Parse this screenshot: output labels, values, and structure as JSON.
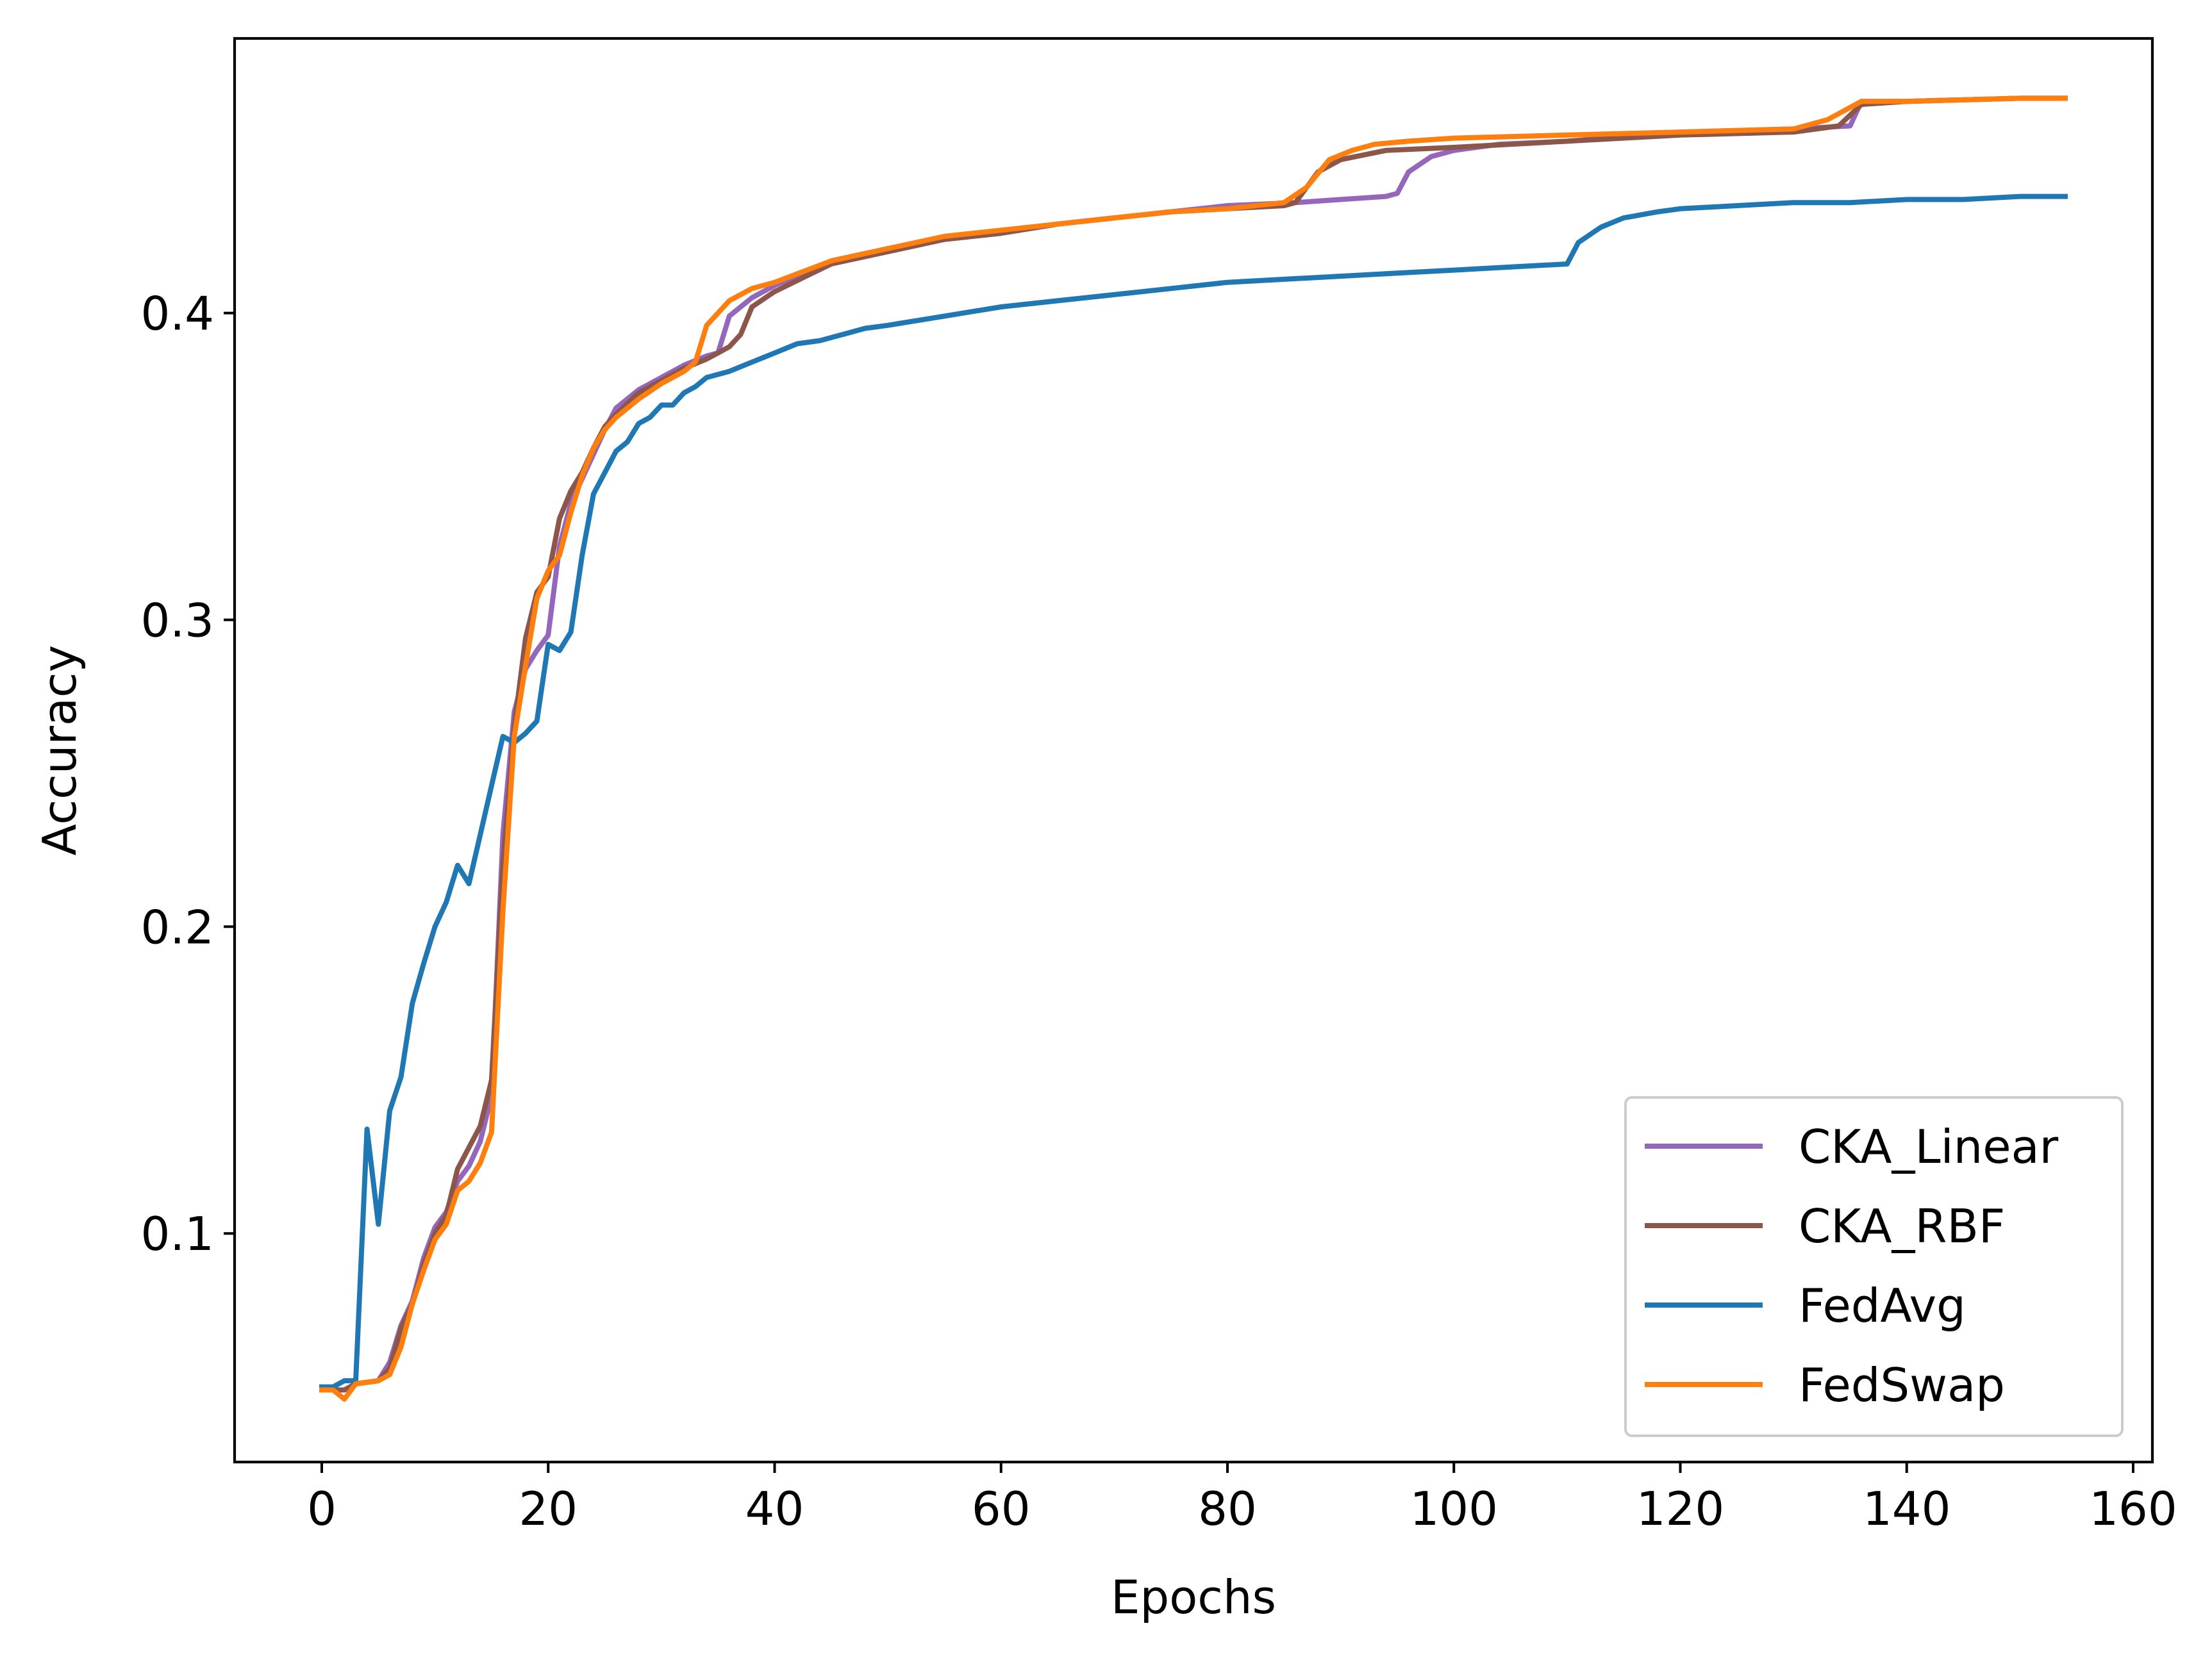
{
  "chart_data": {
    "type": "line",
    "title": "",
    "xlabel": "Epochs",
    "ylabel": "Accuracy",
    "xlim": [
      -7.7,
      161.7
    ],
    "ylim": [
      0.0255,
      0.4895
    ],
    "xticks": [
      0,
      20,
      40,
      60,
      80,
      100,
      120,
      140,
      160
    ],
    "yticks": [
      0.1,
      0.2,
      0.3,
      0.4
    ],
    "ytick_labels": [
      "0.1",
      "0.2",
      "0.3",
      "0.4"
    ],
    "xtick_labels": [
      "0",
      "20",
      "40",
      "60",
      "80",
      "100",
      "120",
      "140",
      "160"
    ],
    "grid": false,
    "legend_position": "lower right",
    "series": [
      {
        "name": "CKA_Linear",
        "color": "#9467bd",
        "points": [
          [
            0,
            0.049
          ],
          [
            2,
            0.049
          ],
          [
            3,
            0.051
          ],
          [
            5,
            0.052
          ],
          [
            6,
            0.058
          ],
          [
            7,
            0.07
          ],
          [
            8,
            0.078
          ],
          [
            9,
            0.092
          ],
          [
            10,
            0.102
          ],
          [
            11,
            0.107
          ],
          [
            12,
            0.117
          ],
          [
            13,
            0.122
          ],
          [
            14,
            0.13
          ],
          [
            15,
            0.145
          ],
          [
            16,
            0.23
          ],
          [
            17,
            0.27
          ],
          [
            18,
            0.284
          ],
          [
            19,
            0.29
          ],
          [
            20,
            0.295
          ],
          [
            21,
            0.324
          ],
          [
            22,
            0.338
          ],
          [
            23,
            0.346
          ],
          [
            24,
            0.354
          ],
          [
            25,
            0.362
          ],
          [
            26,
            0.369
          ],
          [
            28,
            0.375
          ],
          [
            30,
            0.379
          ],
          [
            32,
            0.383
          ],
          [
            34,
            0.386
          ],
          [
            35,
            0.387
          ],
          [
            36,
            0.399
          ],
          [
            38,
            0.405
          ],
          [
            40,
            0.409
          ],
          [
            45,
            0.417
          ],
          [
            50,
            0.421
          ],
          [
            55,
            0.424
          ],
          [
            60,
            0.426
          ],
          [
            65,
            0.429
          ],
          [
            70,
            0.431
          ],
          [
            75,
            0.433
          ],
          [
            80,
            0.435
          ],
          [
            86,
            0.436
          ],
          [
            90,
            0.437
          ],
          [
            94,
            0.438
          ],
          [
            95,
            0.439
          ],
          [
            96,
            0.446
          ],
          [
            98,
            0.451
          ],
          [
            100,
            0.453
          ],
          [
            104,
            0.455
          ],
          [
            110,
            0.456
          ],
          [
            120,
            0.459
          ],
          [
            130,
            0.46
          ],
          [
            135,
            0.461
          ],
          [
            136,
            0.469
          ],
          [
            140,
            0.469
          ],
          [
            150,
            0.47
          ],
          [
            154,
            0.47
          ]
        ]
      },
      {
        "name": "CKA_RBF",
        "color": "#8c564b",
        "points": [
          [
            0,
            0.049
          ],
          [
            2,
            0.049
          ],
          [
            3,
            0.051
          ],
          [
            5,
            0.052
          ],
          [
            6,
            0.056
          ],
          [
            7,
            0.069
          ],
          [
            8,
            0.077
          ],
          [
            9,
            0.09
          ],
          [
            10,
            0.1
          ],
          [
            11,
            0.106
          ],
          [
            12,
            0.121
          ],
          [
            13,
            0.128
          ],
          [
            14,
            0.135
          ],
          [
            15,
            0.15
          ],
          [
            16,
            0.22
          ],
          [
            17,
            0.265
          ],
          [
            18,
            0.294
          ],
          [
            19,
            0.309
          ],
          [
            20,
            0.314
          ],
          [
            21,
            0.333
          ],
          [
            22,
            0.342
          ],
          [
            23,
            0.348
          ],
          [
            24,
            0.356
          ],
          [
            25,
            0.363
          ],
          [
            26,
            0.367
          ],
          [
            28,
            0.374
          ],
          [
            30,
            0.378
          ],
          [
            32,
            0.382
          ],
          [
            34,
            0.385
          ],
          [
            35,
            0.387
          ],
          [
            36,
            0.389
          ],
          [
            37,
            0.393
          ],
          [
            38,
            0.402
          ],
          [
            40,
            0.407
          ],
          [
            45,
            0.416
          ],
          [
            50,
            0.42
          ],
          [
            55,
            0.424
          ],
          [
            60,
            0.426
          ],
          [
            65,
            0.429
          ],
          [
            70,
            0.431
          ],
          [
            75,
            0.433
          ],
          [
            80,
            0.434
          ],
          [
            85,
            0.435
          ],
          [
            86,
            0.436
          ],
          [
            88,
            0.446
          ],
          [
            90,
            0.45
          ],
          [
            94,
            0.453
          ],
          [
            100,
            0.454
          ],
          [
            110,
            0.456
          ],
          [
            120,
            0.458
          ],
          [
            130,
            0.459
          ],
          [
            134,
            0.461
          ],
          [
            136,
            0.468
          ],
          [
            140,
            0.469
          ],
          [
            150,
            0.47
          ],
          [
            154,
            0.47
          ]
        ]
      },
      {
        "name": "FedAvg",
        "color": "#1f77b4",
        "points": [
          [
            0,
            0.05
          ],
          [
            1,
            0.05
          ],
          [
            2,
            0.052
          ],
          [
            3,
            0.052
          ],
          [
            4,
            0.134
          ],
          [
            5,
            0.103
          ],
          [
            6,
            0.14
          ],
          [
            7,
            0.151
          ],
          [
            8,
            0.175
          ],
          [
            9,
            0.188
          ],
          [
            10,
            0.2
          ],
          [
            11,
            0.208
          ],
          [
            12,
            0.22
          ],
          [
            13,
            0.214
          ],
          [
            14,
            0.23
          ],
          [
            15,
            0.246
          ],
          [
            16,
            0.262
          ],
          [
            17,
            0.26
          ],
          [
            18,
            0.263
          ],
          [
            19,
            0.267
          ],
          [
            20,
            0.292
          ],
          [
            21,
            0.29
          ],
          [
            22,
            0.296
          ],
          [
            23,
            0.321
          ],
          [
            24,
            0.341
          ],
          [
            25,
            0.348
          ],
          [
            26,
            0.355
          ],
          [
            27,
            0.358
          ],
          [
            28,
            0.364
          ],
          [
            29,
            0.366
          ],
          [
            30,
            0.37
          ],
          [
            31,
            0.37
          ],
          [
            32,
            0.374
          ],
          [
            33,
            0.376
          ],
          [
            34,
            0.379
          ],
          [
            36,
            0.381
          ],
          [
            38,
            0.384
          ],
          [
            40,
            0.387
          ],
          [
            42,
            0.39
          ],
          [
            44,
            0.391
          ],
          [
            46,
            0.393
          ],
          [
            48,
            0.395
          ],
          [
            50,
            0.396
          ],
          [
            55,
            0.399
          ],
          [
            60,
            0.402
          ],
          [
            65,
            0.404
          ],
          [
            70,
            0.406
          ],
          [
            75,
            0.408
          ],
          [
            80,
            0.41
          ],
          [
            85,
            0.411
          ],
          [
            90,
            0.412
          ],
          [
            95,
            0.413
          ],
          [
            100,
            0.414
          ],
          [
            105,
            0.415
          ],
          [
            110,
            0.416
          ],
          [
            111,
            0.423
          ],
          [
            113,
            0.428
          ],
          [
            115,
            0.431
          ],
          [
            118,
            0.433
          ],
          [
            120,
            0.434
          ],
          [
            125,
            0.435
          ],
          [
            130,
            0.436
          ],
          [
            135,
            0.436
          ],
          [
            140,
            0.437
          ],
          [
            145,
            0.437
          ],
          [
            150,
            0.438
          ],
          [
            154,
            0.438
          ]
        ]
      },
      {
        "name": "FedSwap",
        "color": "#ff7f0e",
        "points": [
          [
            0,
            0.049
          ],
          [
            1,
            0.049
          ],
          [
            2,
            0.046
          ],
          [
            3,
            0.051
          ],
          [
            5,
            0.052
          ],
          [
            6,
            0.054
          ],
          [
            7,
            0.063
          ],
          [
            8,
            0.077
          ],
          [
            9,
            0.088
          ],
          [
            10,
            0.098
          ],
          [
            11,
            0.103
          ],
          [
            12,
            0.114
          ],
          [
            13,
            0.117
          ],
          [
            14,
            0.123
          ],
          [
            15,
            0.133
          ],
          [
            16,
            0.205
          ],
          [
            17,
            0.262
          ],
          [
            18,
            0.285
          ],
          [
            19,
            0.307
          ],
          [
            20,
            0.316
          ],
          [
            21,
            0.321
          ],
          [
            22,
            0.335
          ],
          [
            23,
            0.347
          ],
          [
            24,
            0.356
          ],
          [
            25,
            0.362
          ],
          [
            26,
            0.366
          ],
          [
            28,
            0.372
          ],
          [
            30,
            0.377
          ],
          [
            32,
            0.381
          ],
          [
            33,
            0.384
          ],
          [
            34,
            0.396
          ],
          [
            36,
            0.404
          ],
          [
            38,
            0.408
          ],
          [
            40,
            0.41
          ],
          [
            45,
            0.417
          ],
          [
            50,
            0.421
          ],
          [
            55,
            0.425
          ],
          [
            60,
            0.427
          ],
          [
            65,
            0.429
          ],
          [
            70,
            0.431
          ],
          [
            75,
            0.433
          ],
          [
            80,
            0.434
          ],
          [
            85,
            0.436
          ],
          [
            87,
            0.441
          ],
          [
            89,
            0.45
          ],
          [
            91,
            0.453
          ],
          [
            93,
            0.455
          ],
          [
            96,
            0.456
          ],
          [
            100,
            0.457
          ],
          [
            110,
            0.458
          ],
          [
            120,
            0.459
          ],
          [
            130,
            0.46
          ],
          [
            133,
            0.463
          ],
          [
            136,
            0.469
          ],
          [
            140,
            0.469
          ],
          [
            150,
            0.47
          ],
          [
            154,
            0.47
          ]
        ]
      }
    ],
    "legend_order": [
      "CKA_Linear",
      "CKA_RBF",
      "FedAvg",
      "FedSwap"
    ]
  }
}
